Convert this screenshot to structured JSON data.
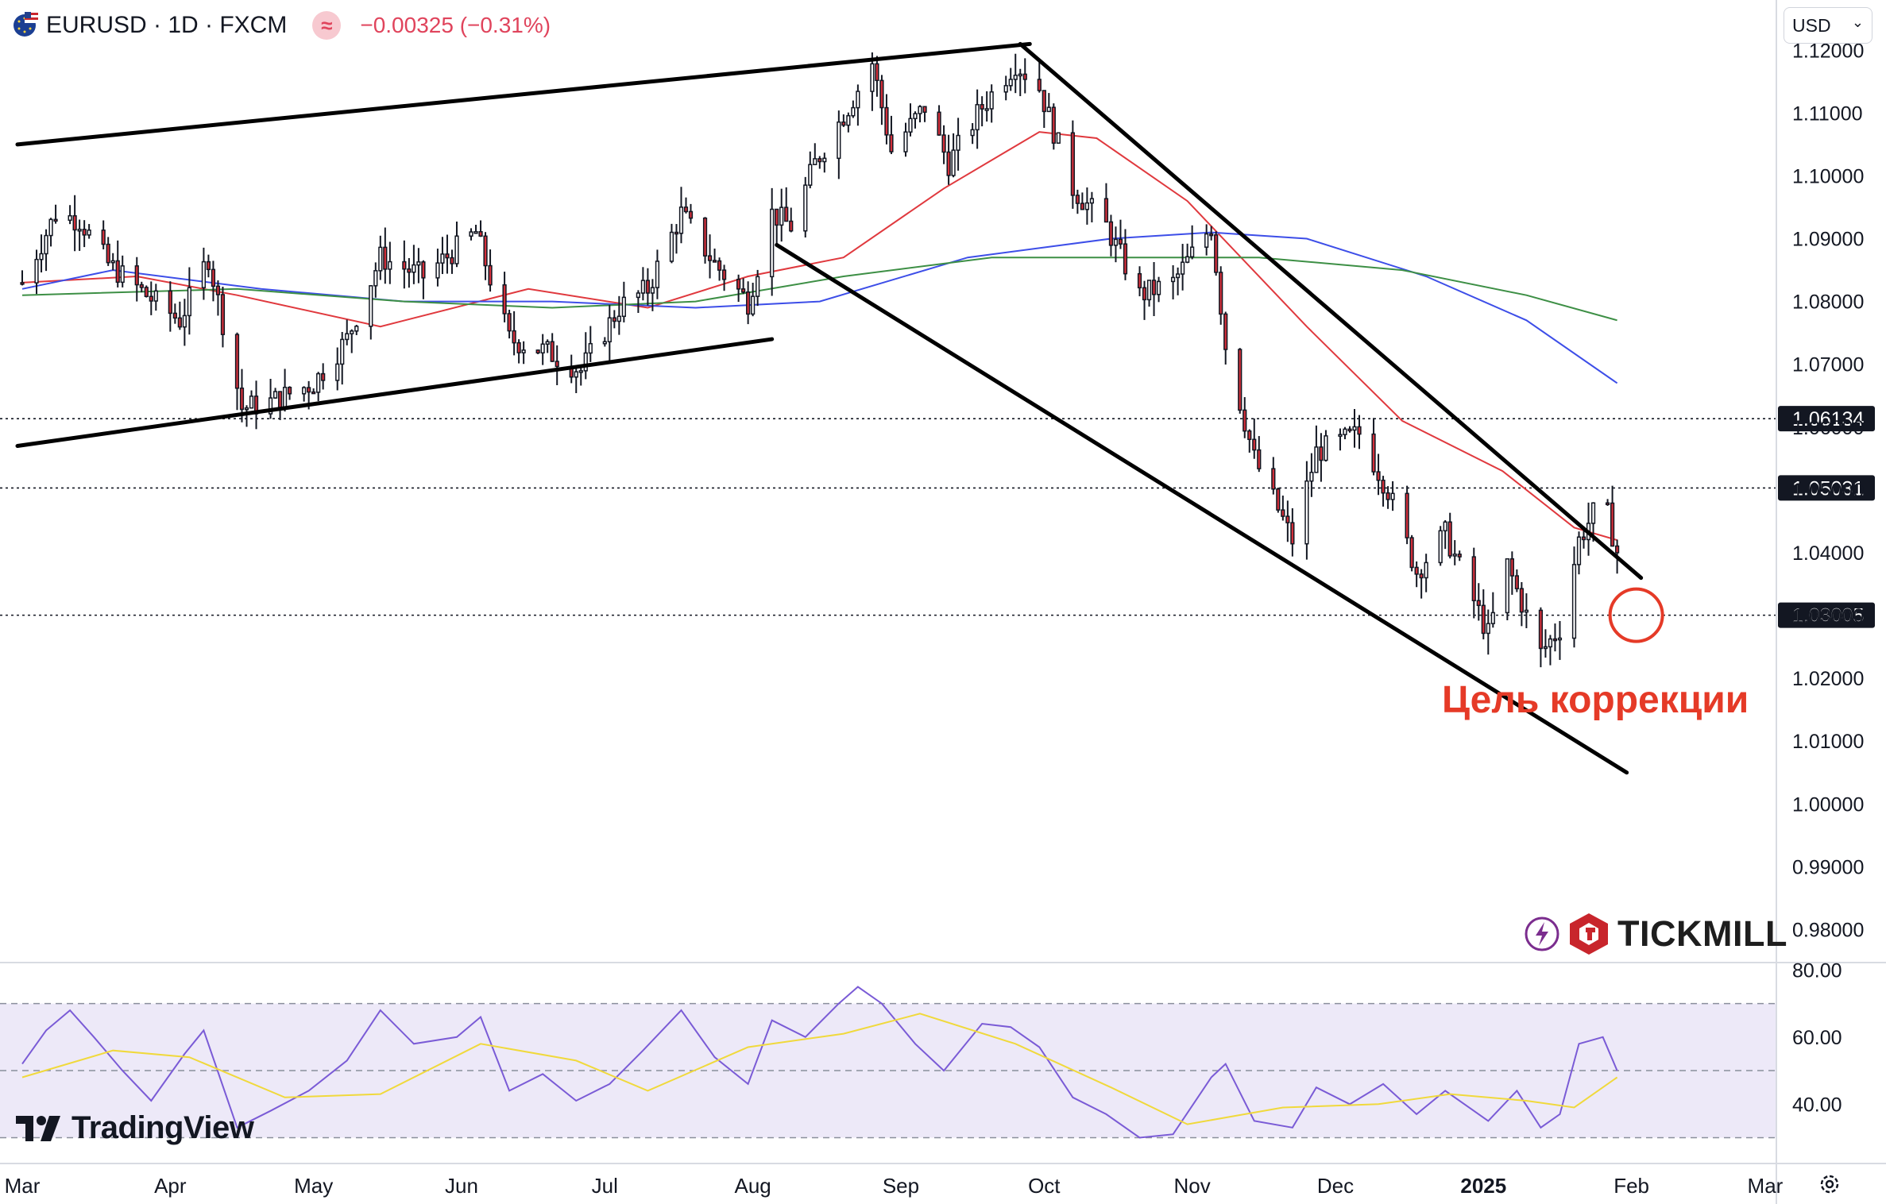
{
  "header": {
    "symbol": "EURUSD · 1D · FXCM",
    "change": "−0.00325 (−0.31%)",
    "wave_icon": "≈"
  },
  "currency_selector": {
    "value": "USD",
    "chevron": "⌄"
  },
  "chart_data": {
    "type": "candlestick",
    "symbol": "EURUSD",
    "timeframe": "1D",
    "source": "FXCM",
    "ylim": [
      0.975,
      1.128
    ],
    "y_ticks": [
      "1.12000",
      "1.11000",
      "1.10000",
      "1.09000",
      "1.08000",
      "1.07000",
      "1.06000",
      "1.05000",
      "1.04000",
      "1.03000",
      "1.02000",
      "1.01000",
      "1.00000",
      "0.99000",
      "0.98000"
    ],
    "y_tick_values": [
      1.12,
      1.11,
      1.1,
      1.09,
      1.08,
      1.07,
      1.06,
      1.05,
      1.04,
      1.03,
      1.02,
      1.01,
      1.0,
      0.99,
      0.98
    ],
    "x_labels": [
      "Mar",
      "Apr",
      "May",
      "Jun",
      "Jul",
      "Aug",
      "Sep",
      "Oct",
      "Nov",
      "Dec",
      "2025",
      "Feb",
      "Mar"
    ],
    "x_label_dates": [
      "2024-03-01",
      "2024-04-01",
      "2024-05-01",
      "2024-06-01",
      "2024-07-01",
      "2024-08-01",
      "2024-09-01",
      "2024-10-01",
      "2024-11-01",
      "2024-12-01",
      "2025-01-01",
      "2025-02-01",
      "2025-03-01"
    ],
    "x_range": [
      "2024-03-01",
      "2025-03-08"
    ],
    "bold_x_label": "2025",
    "anchors": [
      [
        "2024-03-01",
        1.083
      ],
      [
        "2024-03-08",
        1.094
      ],
      [
        "2024-03-13",
        1.093
      ],
      [
        "2024-03-19",
        1.086
      ],
      [
        "2024-03-27",
        1.081
      ],
      [
        "2024-04-03",
        1.077
      ],
      [
        "2024-04-09",
        1.087
      ],
      [
        "2024-04-16",
        1.063
      ],
      [
        "2024-04-22",
        1.064
      ],
      [
        "2024-05-01",
        1.067
      ],
      [
        "2024-05-08",
        1.074
      ],
      [
        "2024-05-15",
        1.087
      ],
      [
        "2024-05-24",
        1.084
      ],
      [
        "2024-06-04",
        1.091
      ],
      [
        "2024-06-11",
        1.074
      ],
      [
        "2024-06-19",
        1.072
      ],
      [
        "2024-06-26",
        1.069
      ],
      [
        "2024-07-04",
        1.079
      ],
      [
        "2024-07-10",
        1.082
      ],
      [
        "2024-07-17",
        1.094
      ],
      [
        "2024-07-24",
        1.086
      ],
      [
        "2024-07-31",
        1.08
      ],
      [
        "2024-08-05",
        1.094
      ],
      [
        "2024-08-09",
        1.092
      ],
      [
        "2024-08-14",
        1.102
      ],
      [
        "2024-08-21",
        1.111
      ],
      [
        "2024-08-26",
        1.118
      ],
      [
        "2024-08-30",
        1.104
      ],
      [
        "2024-09-06",
        1.111
      ],
      [
        "2024-09-11",
        1.102
      ],
      [
        "2024-09-18",
        1.111
      ],
      [
        "2024-09-25",
        1.118
      ],
      [
        "2024-09-30",
        1.114
      ],
      [
        "2024-10-07",
        1.098
      ],
      [
        "2024-10-14",
        1.092
      ],
      [
        "2024-10-21",
        1.081
      ],
      [
        "2024-10-28",
        1.083
      ],
      [
        "2024-11-05",
        1.092
      ],
      [
        "2024-11-08",
        1.073
      ],
      [
        "2024-11-14",
        1.055
      ],
      [
        "2024-11-22",
        1.042
      ],
      [
        "2024-11-27",
        1.056
      ],
      [
        "2024-12-06",
        1.059
      ],
      [
        "2024-12-12",
        1.05
      ],
      [
        "2024-12-18",
        1.037
      ],
      [
        "2024-12-24",
        1.043
      ],
      [
        "2025-01-02",
        1.027
      ],
      [
        "2025-01-06",
        1.038
      ],
      [
        "2025-01-13",
        1.024
      ],
      [
        "2025-01-17",
        1.028
      ],
      [
        "2025-01-21",
        1.042
      ],
      [
        "2025-01-26",
        1.049
      ],
      [
        "2025-01-29",
        1.04
      ]
    ],
    "last_close": 1.04,
    "moving_averages": [
      {
        "color": "#e0393e",
        "points": [
          [
            "2024-03-01",
            1.083
          ],
          [
            "2024-03-25",
            1.084
          ],
          [
            "2024-04-15",
            1.081
          ],
          [
            "2024-05-15",
            1.076
          ],
          [
            "2024-06-15",
            1.082
          ],
          [
            "2024-07-10",
            1.079
          ],
          [
            "2024-07-31",
            1.084
          ],
          [
            "2024-08-20",
            1.087
          ],
          [
            "2024-09-10",
            1.098
          ],
          [
            "2024-09-30",
            1.107
          ],
          [
            "2024-10-12",
            1.106
          ],
          [
            "2024-10-31",
            1.096
          ],
          [
            "2024-11-25",
            1.076
          ],
          [
            "2024-12-15",
            1.061
          ],
          [
            "2025-01-05",
            1.053
          ],
          [
            "2025-01-20",
            1.044
          ],
          [
            "2025-01-29",
            1.042
          ]
        ]
      },
      {
        "color": "#3d4ee8",
        "points": [
          [
            "2024-03-01",
            1.082
          ],
          [
            "2024-03-20",
            1.085
          ],
          [
            "2024-04-20",
            1.082
          ],
          [
            "2024-05-20",
            1.08
          ],
          [
            "2024-06-20",
            1.08
          ],
          [
            "2024-07-20",
            1.079
          ],
          [
            "2024-08-15",
            1.08
          ],
          [
            "2024-09-15",
            1.087
          ],
          [
            "2024-10-15",
            1.09
          ],
          [
            "2024-11-05",
            1.091
          ],
          [
            "2024-11-25",
            1.09
          ],
          [
            "2024-12-20",
            1.084
          ],
          [
            "2025-01-10",
            1.077
          ],
          [
            "2025-01-29",
            1.067
          ]
        ]
      },
      {
        "color": "#3d8f45",
        "points": [
          [
            "2024-03-01",
            1.081
          ],
          [
            "2024-04-15",
            1.082
          ],
          [
            "2024-05-20",
            1.08
          ],
          [
            "2024-06-20",
            1.079
          ],
          [
            "2024-07-20",
            1.08
          ],
          [
            "2024-08-20",
            1.084
          ],
          [
            "2024-09-20",
            1.087
          ],
          [
            "2024-10-15",
            1.087
          ],
          [
            "2024-11-15",
            1.087
          ],
          [
            "2024-12-15",
            1.085
          ],
          [
            "2025-01-10",
            1.081
          ],
          [
            "2025-01-29",
            1.077
          ]
        ]
      }
    ],
    "trend_lines": [
      {
        "from": [
          "2024-02-29",
          1.105
        ],
        "to": [
          "2024-09-28",
          1.121
        ]
      },
      {
        "from": [
          "2024-02-29",
          1.057
        ],
        "to": [
          "2024-08-05",
          1.074
        ]
      },
      {
        "from": [
          "2024-09-26",
          1.121
        ],
        "to": [
          "2025-02-03",
          1.036
        ]
      },
      {
        "from": [
          "2024-08-06",
          1.089
        ],
        "to": [
          "2025-01-31",
          1.005
        ]
      }
    ],
    "horizontal_levels": [
      {
        "value": 1.06134,
        "label": "1.06134"
      },
      {
        "value": 1.05031,
        "label": "1.05031"
      },
      {
        "value": 1.03005,
        "label": "1.03005"
      }
    ],
    "target_circle": {
      "date": "2025-02-02",
      "value": 1.03005
    },
    "annotation": "Цель коррекции",
    "annotation_color": "#e53a27",
    "candle_up_color": "#ffffff",
    "candle_down_color": "#d32f3a",
    "rsi": {
      "ylim": [
        23,
        82
      ],
      "ticks": [
        "80.00",
        "60.00",
        "40.00"
      ],
      "tick_values": [
        80,
        60,
        40
      ],
      "bands": [
        70,
        50,
        30
      ],
      "band_fill": "#ede9f8",
      "line_color": "#7a5bd6",
      "ma_color": "#f0d93c",
      "points": [
        [
          "2024-03-01",
          52
        ],
        [
          "2024-03-06",
          62
        ],
        [
          "2024-03-11",
          68
        ],
        [
          "2024-03-16",
          60
        ],
        [
          "2024-03-22",
          50
        ],
        [
          "2024-03-28",
          41
        ],
        [
          "2024-04-04",
          55
        ],
        [
          "2024-04-08",
          62
        ],
        [
          "2024-04-15",
          33
        ],
        [
          "2024-04-22",
          38
        ],
        [
          "2024-04-30",
          44
        ],
        [
          "2024-05-08",
          53
        ],
        [
          "2024-05-15",
          68
        ],
        [
          "2024-05-22",
          58
        ],
        [
          "2024-05-31",
          60
        ],
        [
          "2024-06-05",
          66
        ],
        [
          "2024-06-11",
          44
        ],
        [
          "2024-06-18",
          49
        ],
        [
          "2024-06-25",
          41
        ],
        [
          "2024-07-02",
          46
        ],
        [
          "2024-07-09",
          56
        ],
        [
          "2024-07-17",
          68
        ],
        [
          "2024-07-24",
          54
        ],
        [
          "2024-07-31",
          46
        ],
        [
          "2024-08-05",
          65
        ],
        [
          "2024-08-12",
          60
        ],
        [
          "2024-08-19",
          70
        ],
        [
          "2024-08-23",
          75
        ],
        [
          "2024-08-28",
          70
        ],
        [
          "2024-09-04",
          58
        ],
        [
          "2024-09-10",
          50
        ],
        [
          "2024-09-18",
          64
        ],
        [
          "2024-09-24",
          63
        ],
        [
          "2024-09-30",
          57
        ],
        [
          "2024-10-07",
          42
        ],
        [
          "2024-10-14",
          37
        ],
        [
          "2024-10-21",
          30
        ],
        [
          "2024-10-28",
          31
        ],
        [
          "2024-11-05",
          48
        ],
        [
          "2024-11-08",
          52
        ],
        [
          "2024-11-14",
          35
        ],
        [
          "2024-11-22",
          33
        ],
        [
          "2024-11-27",
          45
        ],
        [
          "2024-12-04",
          40
        ],
        [
          "2024-12-11",
          46
        ],
        [
          "2024-12-18",
          37
        ],
        [
          "2024-12-24",
          44
        ],
        [
          "2025-01-02",
          35
        ],
        [
          "2025-01-08",
          44
        ],
        [
          "2025-01-13",
          33
        ],
        [
          "2025-01-17",
          37
        ],
        [
          "2025-01-21",
          58
        ],
        [
          "2025-01-26",
          60
        ],
        [
          "2025-01-29",
          50
        ]
      ],
      "ma_points": [
        [
          "2024-03-01",
          48
        ],
        [
          "2024-03-20",
          56
        ],
        [
          "2024-04-05",
          54
        ],
        [
          "2024-04-25",
          42
        ],
        [
          "2024-05-15",
          43
        ],
        [
          "2024-06-05",
          58
        ],
        [
          "2024-06-25",
          53
        ],
        [
          "2024-07-10",
          44
        ],
        [
          "2024-07-31",
          57
        ],
        [
          "2024-08-20",
          61
        ],
        [
          "2024-09-05",
          67
        ],
        [
          "2024-09-25",
          58
        ],
        [
          "2024-10-15",
          45
        ],
        [
          "2024-10-31",
          34
        ],
        [
          "2024-11-20",
          39
        ],
        [
          "2024-12-10",
          40
        ],
        [
          "2024-12-25",
          43
        ],
        [
          "2025-01-10",
          41
        ],
        [
          "2025-01-20",
          39
        ],
        [
          "2025-01-29",
          48
        ]
      ]
    }
  },
  "watermark": {
    "tradingview": "TradingView",
    "tickmill": "TICKMILL"
  }
}
